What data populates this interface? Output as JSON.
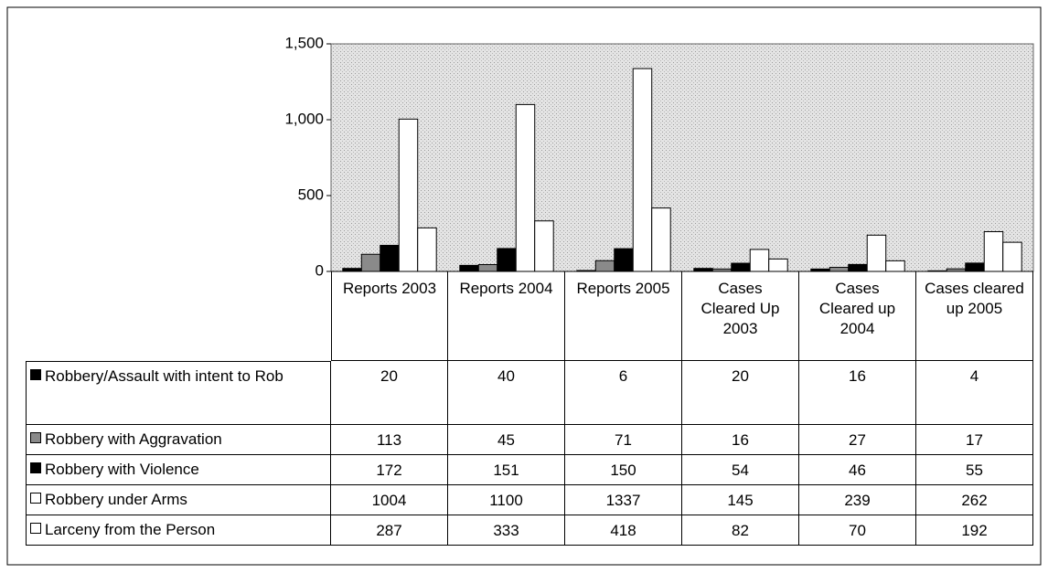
{
  "chart_data": {
    "type": "bar",
    "categories": [
      "Reports 2003",
      "Reports 2004",
      "Reports 2005",
      "Cases Cleared Up 2003",
      "Cases Cleared up 2004",
      "Cases cleared up 2005"
    ],
    "series": [
      {
        "name": "Robbery/Assault with intent to Rob",
        "color": "#000000",
        "values": [
          20,
          40,
          6,
          20,
          16,
          4
        ]
      },
      {
        "name": "Robbery with Aggravation",
        "color": "#8a8a8a",
        "values": [
          113,
          45,
          71,
          16,
          27,
          17
        ]
      },
      {
        "name": "Robbery with Violence",
        "color": "#000000",
        "values": [
          172,
          151,
          150,
          54,
          46,
          55
        ]
      },
      {
        "name": "Robbery under Arms",
        "color": "#ffffff",
        "values": [
          1004,
          1100,
          1337,
          145,
          239,
          262
        ]
      },
      {
        "name": "Larceny from the Person",
        "color": "#ffffff",
        "values": [
          287,
          333,
          418,
          82,
          70,
          192
        ]
      }
    ],
    "ylim": [
      0,
      1500
    ],
    "yticks": [
      0,
      500,
      {
        "value": 1000,
        "label": "1,000"
      },
      {
        "value": 1500,
        "label": "1,500"
      }
    ],
    "legend": "table"
  }
}
